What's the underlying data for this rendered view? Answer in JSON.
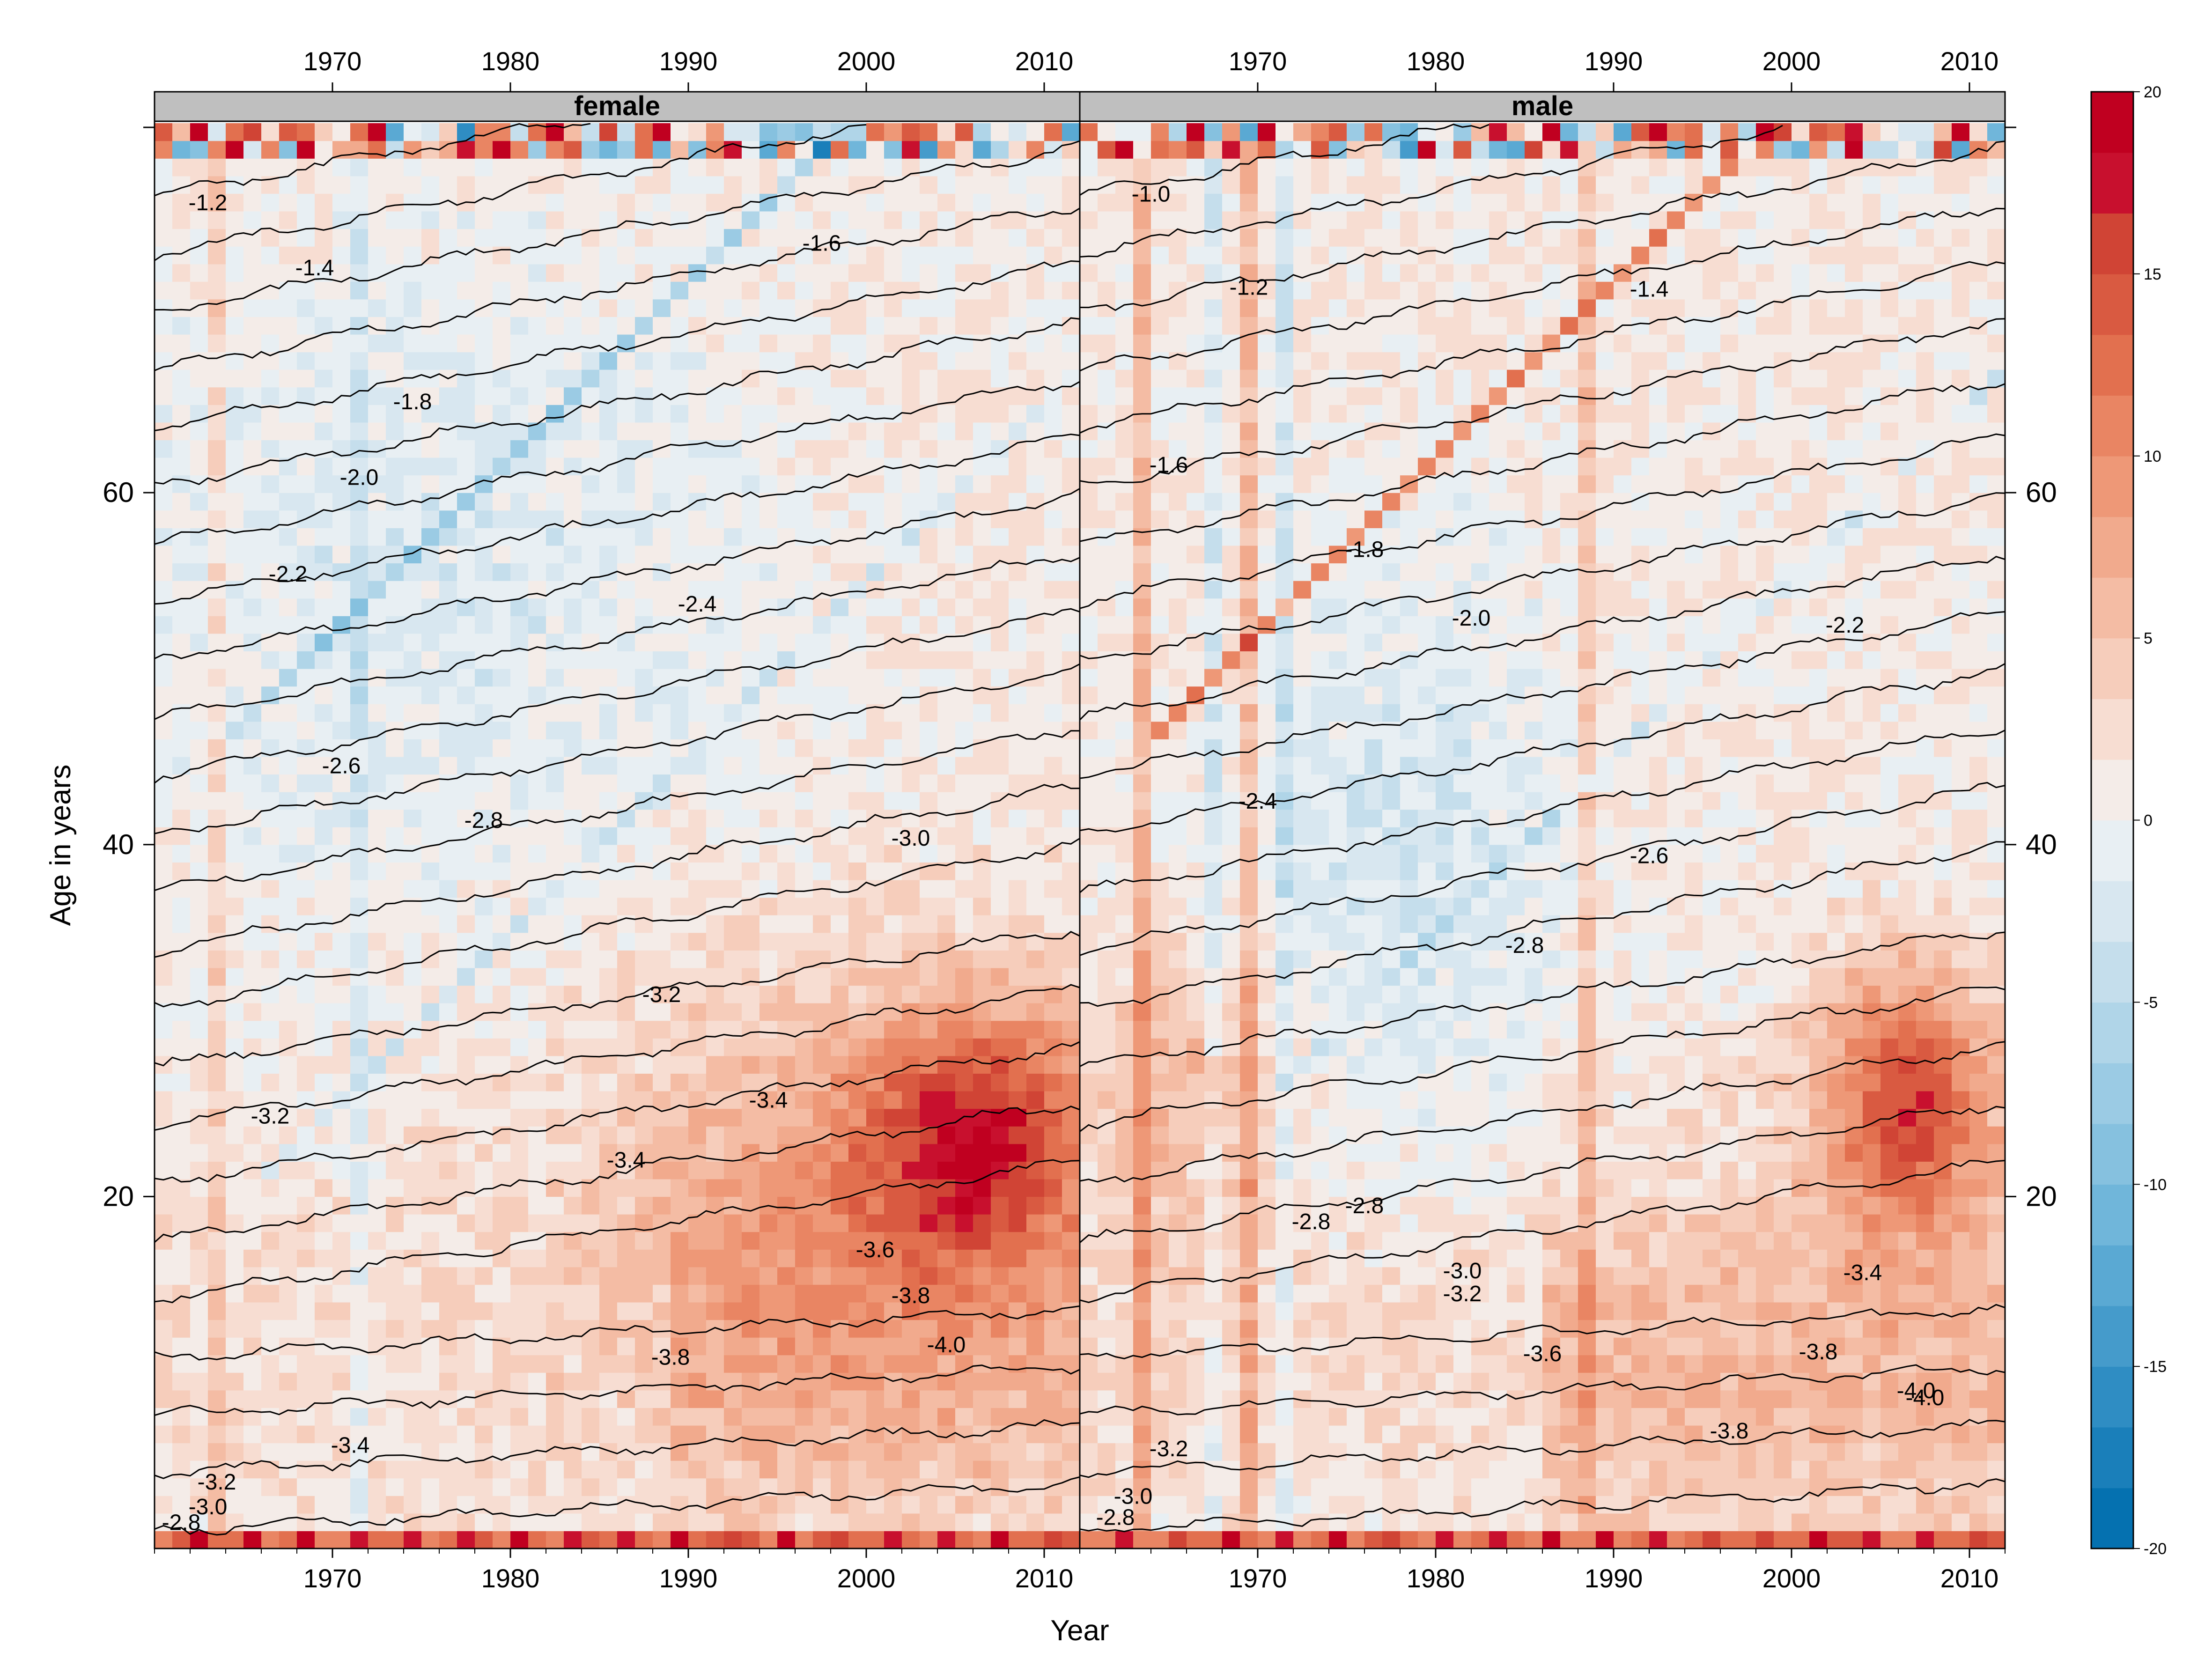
{
  "chart_data": {
    "type": "heatmap",
    "xlabel": "Year",
    "ylabel": "Age in years",
    "x_range": [
      1960,
      2012
    ],
    "y_range": [
      0,
      80
    ],
    "x_ticks": [
      1970,
      1980,
      1990,
      2000,
      2010
    ],
    "y_ticks": [
      20,
      40,
      60
    ],
    "colorbar": {
      "min": -20,
      "max": 20,
      "ticks": [
        -20,
        -15,
        -10,
        -5,
        0,
        5,
        10,
        15,
        20
      ],
      "low_color": "#0b6eae",
      "mid_color": "#f7f7f7",
      "high_color": "#c8102e",
      "colors": [
        "#0571b0",
        "#1a7fba",
        "#2f8dc3",
        "#459bcb",
        "#5aa9d3",
        "#70b6da",
        "#86c1df",
        "#9bcbe4",
        "#b0d5e8",
        "#c5deec",
        "#d8e7f0",
        "#e8eff3",
        "#f4ece8",
        "#f7ddd2",
        "#f6cdbb",
        "#f4bca4",
        "#f1aa8d",
        "#ee9877",
        "#e98563",
        "#e2704f",
        "#d95a41",
        "#d04435",
        "#c8102e",
        "#c00020"
      ]
    },
    "panels": [
      {
        "title": "female",
        "annotated_contours": [
          {
            "label": "-1.2",
            "year": 1963,
            "age": 76.5
          },
          {
            "label": "-1.4",
            "year": 1969,
            "age": 72.8
          },
          {
            "label": "-1.6",
            "year": 1997.5,
            "age": 74.2
          },
          {
            "label": "-1.8",
            "year": 1974.5,
            "age": 65.2
          },
          {
            "label": "-2.0",
            "year": 1971.5,
            "age": 60.9
          },
          {
            "label": "-2.2",
            "year": 1967.5,
            "age": 55.4
          },
          {
            "label": "-2.4",
            "year": 1990.5,
            "age": 53.7
          },
          {
            "label": "-2.6",
            "year": 1970.5,
            "age": 44.5
          },
          {
            "label": "-2.8",
            "year": 1978.5,
            "age": 41.4
          },
          {
            "label": "-3.0",
            "year": 2002.5,
            "age": 40.4
          },
          {
            "label": "-3.2",
            "year": 1988.5,
            "age": 31.5
          },
          {
            "label": "-3.2",
            "year": 1966.5,
            "age": 24.6
          },
          {
            "label": "-3.4",
            "year": 1994.5,
            "age": 25.5
          },
          {
            "label": "-3.4",
            "year": 1986.5,
            "age": 22.1
          },
          {
            "label": "-3.6",
            "year": 2000.5,
            "age": 17.0
          },
          {
            "label": "-3.8",
            "year": 2002.5,
            "age": 14.4
          },
          {
            "label": "-3.8",
            "year": 1989,
            "age": 10.9
          },
          {
            "label": "-4.0",
            "year": 2004.5,
            "age": 11.6
          },
          {
            "label": "-3.4",
            "year": 1971,
            "age": 5.9
          },
          {
            "label": "-3.2",
            "year": 1963.5,
            "age": 3.8
          },
          {
            "label": "-3.0",
            "year": 1963,
            "age": 2.4
          },
          {
            "label": "-2.8",
            "year": 1961.5,
            "age": 1.5
          }
        ]
      },
      {
        "title": "male",
        "annotated_contours": [
          {
            "label": "-1.0",
            "year": 1964,
            "age": 77.0
          },
          {
            "label": "-1.2",
            "year": 1969.5,
            "age": 71.7
          },
          {
            "label": "-1.4",
            "year": 1992,
            "age": 71.6
          },
          {
            "label": "-1.6",
            "year": 1965,
            "age": 61.6
          },
          {
            "label": "-1.8",
            "year": 1976,
            "age": 56.8
          },
          {
            "label": "-2.0",
            "year": 1982,
            "age": 52.9
          },
          {
            "label": "-2.2",
            "year": 2003,
            "age": 52.5
          },
          {
            "label": "-2.4",
            "year": 1970,
            "age": 42.5
          },
          {
            "label": "-2.6",
            "year": 1992,
            "age": 39.4
          },
          {
            "label": "-2.8",
            "year": 1985,
            "age": 34.3
          },
          {
            "label": "-2.8",
            "year": 1973,
            "age": 18.6
          },
          {
            "label": "-2.8",
            "year": 1976,
            "age": 19.5
          },
          {
            "label": "-3.0",
            "year": 1981.5,
            "age": 15.8
          },
          {
            "label": "-3.2",
            "year": 1981.5,
            "age": 14.5
          },
          {
            "label": "-3.4",
            "year": 2004,
            "age": 15.7
          },
          {
            "label": "-3.6",
            "year": 1986,
            "age": 11.1
          },
          {
            "label": "-3.8",
            "year": 2001.5,
            "age": 11.2
          },
          {
            "label": "-3.8",
            "year": 1996.5,
            "age": 6.7
          },
          {
            "label": "-3.2",
            "year": 1965,
            "age": 5.7
          },
          {
            "label": "-4.0",
            "year": 2007,
            "age": 9.0
          },
          {
            "label": "-4.0",
            "year": 2007.5,
            "age": 8.6
          },
          {
            "label": "-3.0",
            "year": 1963,
            "age": 3.0
          },
          {
            "label": "-2.8",
            "year": 1962,
            "age": 1.8
          }
        ]
      }
    ]
  }
}
